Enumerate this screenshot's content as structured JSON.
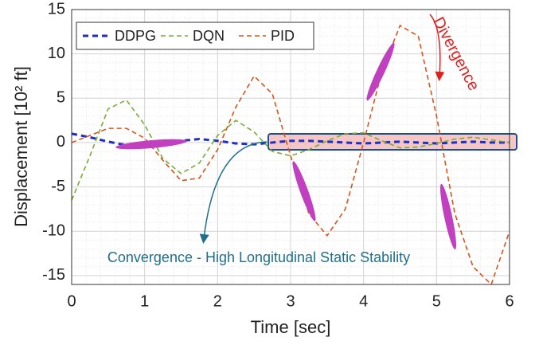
{
  "chart_data": {
    "type": "line",
    "xlabel": "Time [sec]",
    "ylabel": "Displacement [10² ft]",
    "x": [
      0,
      0.25,
      0.5,
      0.75,
      1,
      1.25,
      1.5,
      1.75,
      2,
      2.25,
      2.5,
      2.75,
      3,
      3.25,
      3.5,
      3.75,
      4,
      4.25,
      4.5,
      4.75,
      5,
      5.25,
      5.5,
      5.75,
      6
    ],
    "series": [
      {
        "name": "DDPG",
        "color": "#1f2fbf",
        "dash": "7,5",
        "width": 3,
        "values": [
          1,
          0.6,
          0.1,
          -0.3,
          -0.4,
          -0.2,
          0.2,
          0.4,
          0.2,
          -0.1,
          -0.2,
          0,
          0.2,
          0.2,
          0.1,
          0,
          -0.1,
          0,
          0.1,
          0,
          -0.1,
          0,
          0.1,
          0,
          0
        ]
      },
      {
        "name": "DQN",
        "color": "#77ac30",
        "dash": "6,4",
        "width": 1.6,
        "values": [
          -6.5,
          -1.5,
          3.8,
          4.8,
          2,
          -1.8,
          -3.5,
          -2.3,
          0.8,
          2.5,
          1.2,
          -1,
          -1.5,
          -0.8,
          0.2,
          1,
          1.1,
          0.2,
          -0.6,
          -0.5,
          -0.1,
          0.4,
          0.6,
          0.3,
          0
        ]
      },
      {
        "name": "PID",
        "color": "#d95319",
        "dash": "6,4",
        "width": 1.6,
        "values": [
          0,
          0.8,
          1.6,
          1.6,
          0.5,
          -2,
          -4.3,
          -4,
          -0.8,
          4,
          7.5,
          5.5,
          -1.5,
          -8,
          -10.5,
          -7.5,
          0,
          8,
          13.2,
          12,
          3,
          -8,
          -14,
          -16,
          -10
        ]
      }
    ],
    "xlim": [
      0,
      6
    ],
    "xticks": [
      0,
      1,
      2,
      3,
      4,
      5,
      6
    ],
    "ylim": [
      -16,
      15
    ],
    "yticks": [
      -15,
      -10,
      -5,
      0,
      5,
      10,
      15
    ],
    "grid": true,
    "legend": "top-left",
    "annotations": [
      "Divergence",
      "Convergence - High Longitudinal Static Stability"
    ]
  }
}
